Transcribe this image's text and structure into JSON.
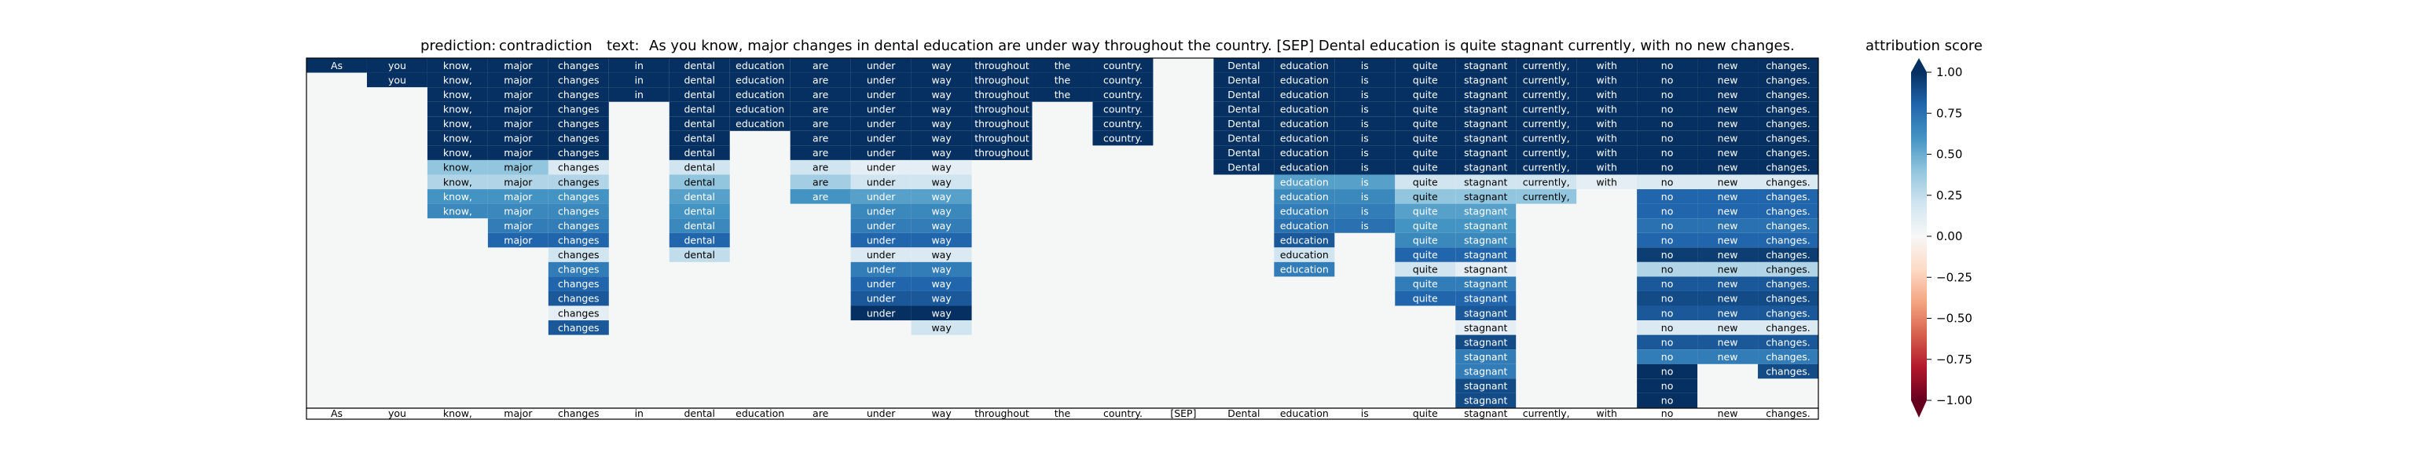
{
  "header": {
    "prediction_label": "prediction:",
    "prediction_value": "contradiction",
    "text_label": "text:",
    "text_value": "As you know, major changes in dental education are under way throughout the country. [SEP] Dental education is quite stagnant currently, with no new changes."
  },
  "chart_data": {
    "type": "heatmap",
    "tokens": [
      "As",
      "you",
      "know,",
      "major",
      "changes",
      "in",
      "dental",
      "education",
      "are",
      "under",
      "way",
      "throughout",
      "the",
      "country.",
      "[SEP]",
      "Dental",
      "education",
      "is",
      "quite",
      "stagnant",
      "currently,",
      "with",
      "no",
      "new",
      "changes."
    ],
    "columns": [
      [
        1.0
      ],
      [
        1.0,
        1.0
      ],
      [
        1.0,
        1.0,
        1.0,
        1.0,
        1.0,
        1.0,
        1.0,
        0.4,
        0.3,
        0.6,
        0.65
      ],
      [
        1.0,
        1.0,
        1.0,
        1.0,
        1.0,
        1.0,
        1.0,
        0.4,
        0.3,
        0.6,
        0.65,
        0.7,
        0.8
      ],
      [
        1.0,
        1.0,
        1.0,
        1.0,
        1.0,
        1.0,
        1.0,
        0.15,
        0.3,
        0.6,
        0.65,
        0.7,
        0.8,
        0.2,
        0.7,
        0.8,
        0.85,
        0.1,
        0.85
      ],
      [
        1.0,
        1.0,
        1.0
      ],
      [
        1.0,
        1.0,
        1.0,
        1.0,
        1.0,
        1.0,
        1.0,
        0.2,
        0.4,
        0.55,
        0.6,
        0.65,
        0.8,
        0.25
      ],
      [
        1.0,
        1.0,
        1.0,
        1.0,
        1.0
      ],
      [
        1.0,
        1.0,
        1.0,
        1.0,
        1.0,
        1.0,
        1.0,
        0.2,
        0.35,
        0.6
      ],
      [
        1.0,
        1.0,
        1.0,
        1.0,
        1.0,
        1.0,
        1.0,
        0.1,
        0.2,
        0.55,
        0.65,
        0.7,
        0.8,
        0.15,
        0.7,
        0.8,
        0.85,
        1.0
      ],
      [
        1.0,
        1.0,
        1.0,
        1.0,
        1.0,
        1.0,
        1.0,
        0.1,
        0.2,
        0.55,
        0.65,
        0.7,
        0.8,
        0.15,
        0.7,
        0.8,
        0.85,
        1.0,
        0.2
      ],
      [
        1.0,
        1.0,
        1.0,
        1.0,
        1.0,
        1.0,
        1.0
      ],
      [
        1.0,
        1.0,
        1.0
      ],
      [
        1.0,
        1.0,
        1.0,
        1.0,
        1.0,
        1.0
      ],
      [],
      [
        1.0,
        1.0,
        1.0,
        1.0,
        1.0,
        1.0,
        1.0,
        1.0
      ],
      [
        1.0,
        1.0,
        1.0,
        1.0,
        1.0,
        1.0,
        1.0,
        1.0,
        0.55,
        0.65,
        0.7,
        0.75,
        0.85,
        0.2,
        0.7
      ],
      [
        1.0,
        1.0,
        1.0,
        1.0,
        1.0,
        1.0,
        1.0,
        1.0,
        0.55,
        0.65,
        0.7,
        0.75
      ],
      [
        1.0,
        1.0,
        1.0,
        1.0,
        1.0,
        1.0,
        1.0,
        1.0,
        0.2,
        0.4,
        0.55,
        0.6,
        0.65,
        0.8,
        0.2,
        0.7,
        0.8
      ],
      [
        1.0,
        1.0,
        1.0,
        1.0,
        1.0,
        1.0,
        1.0,
        1.0,
        0.2,
        0.4,
        0.55,
        0.6,
        0.65,
        0.8,
        0.1,
        0.7,
        0.8,
        0.85,
        0.1,
        0.9,
        0.7,
        0.7,
        0.9,
        0.9
      ],
      [
        1.0,
        1.0,
        1.0,
        1.0,
        1.0,
        1.0,
        1.0,
        1.0,
        0.2,
        0.4
      ],
      [
        1.0,
        1.0,
        1.0,
        1.0,
        1.0,
        1.0,
        1.0,
        1.0,
        0.1
      ],
      [
        1.0,
        1.0,
        1.0,
        1.0,
        1.0,
        1.0,
        1.0,
        1.0,
        0.15,
        0.8,
        0.8,
        0.75,
        0.8,
        0.95,
        0.3,
        0.85,
        0.9,
        0.85,
        0.15,
        0.85,
        0.7,
        1.0,
        1.0,
        1.0
      ],
      [
        1.0,
        1.0,
        1.0,
        1.0,
        1.0,
        1.0,
        1.0,
        1.0,
        0.15,
        0.8,
        0.8,
        0.75,
        0.8,
        0.95,
        0.3,
        0.85,
        0.9,
        0.85,
        0.15,
        0.85,
        0.7
      ],
      [
        1.0,
        1.0,
        1.0,
        1.0,
        1.0,
        1.0,
        1.0,
        1.0,
        0.15,
        0.8,
        0.8,
        0.75,
        0.8,
        0.95,
        0.3,
        0.85,
        0.9,
        0.85,
        0.15,
        0.85,
        0.7,
        0.9
      ]
    ],
    "colorbar": {
      "label": "attribution score",
      "range": [
        -1.0,
        1.0
      ],
      "ticks": [
        "1.00",
        "0.75",
        "0.50",
        "0.25",
        "0.00",
        "−0.25",
        "−0.50",
        "−0.75",
        "−1.00"
      ]
    }
  }
}
